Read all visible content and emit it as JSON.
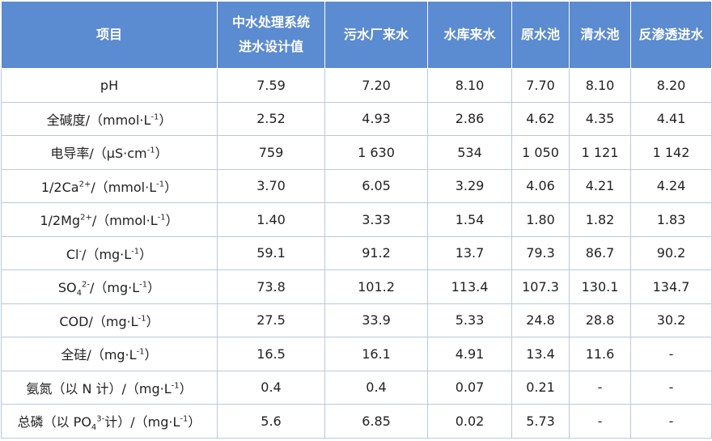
{
  "table": {
    "header": [
      [
        "项目"
      ],
      [
        "中水处理系统",
        "进水设计值"
      ],
      [
        "污水厂来水"
      ],
      [
        "水库来水"
      ],
      [
        "原水池"
      ],
      [
        "清水池"
      ],
      [
        "反渗透进水"
      ]
    ],
    "rows": [
      {
        "label": [
          {
            "t": "pH"
          }
        ],
        "cells": [
          "7.59",
          "7.20",
          "8.10",
          "7.70",
          "8.10",
          "8.20"
        ]
      },
      {
        "label": [
          {
            "t": "全碱度/（mmol·L"
          },
          {
            "sup": "-1"
          },
          {
            "t": "）"
          }
        ],
        "cells": [
          "2.52",
          "4.93",
          "2.86",
          "4.62",
          "4.35",
          "4.41"
        ]
      },
      {
        "label": [
          {
            "t": "电导率/（μS·cm"
          },
          {
            "sup": "-1"
          },
          {
            "t": "）"
          }
        ],
        "cells": [
          "759",
          "1 630",
          "534",
          "1 050",
          "1 121",
          "1 142"
        ]
      },
      {
        "label": [
          {
            "t": "1/2Ca"
          },
          {
            "sup": "2+"
          },
          {
            "t": "/（mmol·L"
          },
          {
            "sup": "-1"
          },
          {
            "t": "）"
          }
        ],
        "cells": [
          "3.70",
          "6.05",
          "3.29",
          "4.06",
          "4.21",
          "4.24"
        ]
      },
      {
        "label": [
          {
            "t": "1/2Mg"
          },
          {
            "sup": "2+"
          },
          {
            "t": "/（mmol·L"
          },
          {
            "sup": "-1"
          },
          {
            "t": "）"
          }
        ],
        "cells": [
          "1.40",
          "3.33",
          "1.54",
          "1.80",
          "1.82",
          "1.83"
        ]
      },
      {
        "label": [
          {
            "t": "Cl"
          },
          {
            "sup": "-"
          },
          {
            "t": "/（mg·L"
          },
          {
            "sup": "-1"
          },
          {
            "t": "）"
          }
        ],
        "cells": [
          "59.1",
          "91.2",
          "13.7",
          "79.3",
          "86.7",
          "90.2"
        ]
      },
      {
        "label": [
          {
            "t": "SO"
          },
          {
            "sub": "4"
          },
          {
            "sup": "2-"
          },
          {
            "t": "/（mg·L"
          },
          {
            "sup": "-1"
          },
          {
            "t": "）"
          }
        ],
        "cells": [
          "73.8",
          "101.2",
          "113.4",
          "107.3",
          "130.1",
          "134.7"
        ]
      },
      {
        "label": [
          {
            "t": "COD/（mg·L"
          },
          {
            "sup": "-1"
          },
          {
            "t": "）"
          }
        ],
        "cells": [
          "27.5",
          "33.9",
          "5.33",
          "24.8",
          "28.8",
          "30.2"
        ]
      },
      {
        "label": [
          {
            "t": "全硅/（mg·L"
          },
          {
            "sup": "-1"
          },
          {
            "t": "）"
          }
        ],
        "cells": [
          "16.5",
          "16.1",
          "4.91",
          "13.4",
          "11.6",
          "-"
        ]
      },
      {
        "label": [
          {
            "t": "氨氮（以 N 计）/（mg·L"
          },
          {
            "sup": "-1"
          },
          {
            "t": "）"
          }
        ],
        "cells": [
          "0.4",
          "0.4",
          "0.07",
          "0.21",
          "-",
          "-"
        ]
      },
      {
        "label": [
          {
            "t": "总磷（以 PO"
          },
          {
            "sub": "4"
          },
          {
            "sup": "3-"
          },
          {
            "t": "计）/（mg·L"
          },
          {
            "sup": "-1"
          },
          {
            "t": "）"
          }
        ],
        "cells": [
          "5.6",
          "6.85",
          "0.02",
          "5.73",
          "-",
          "-"
        ]
      }
    ]
  }
}
